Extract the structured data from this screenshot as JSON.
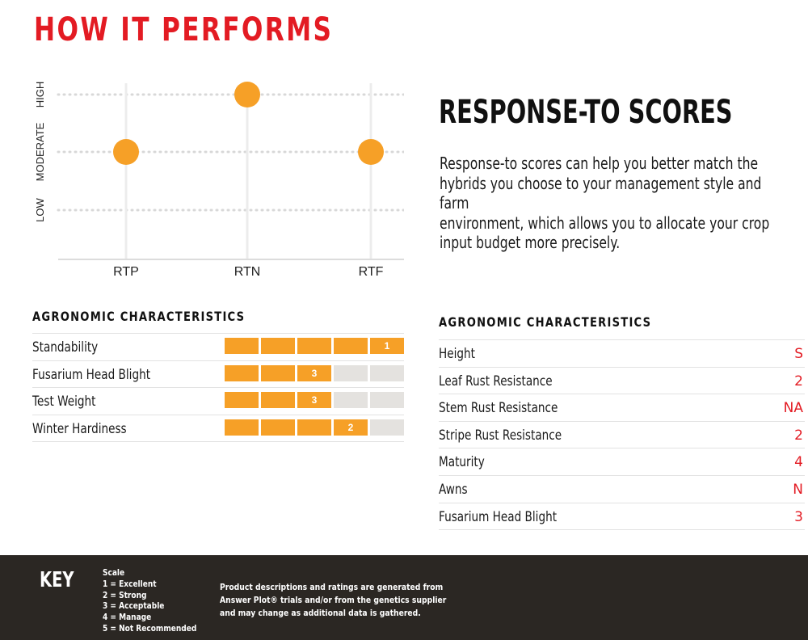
{
  "page": {
    "headline": "HOW IT PERFORMS",
    "accent_color": "#e31b23",
    "bar_color": "#f6a027"
  },
  "chart_data": {
    "type": "scatter",
    "categories": [
      "RTP",
      "RTN",
      "RTF"
    ],
    "y_levels": [
      "LOW",
      "MODERATE",
      "HIGH"
    ],
    "values": [
      "MODERATE",
      "HIGH",
      "MODERATE"
    ],
    "point_color": "#f6a027",
    "grid": true
  },
  "response_to": {
    "title": "RESPONSE-TO SCORES",
    "body_lines": [
      "Response-to scores can help you better match the",
      "hybrids you choose to your management style and farm",
      "environment, which allows you to allocate your crop",
      "input budget more precisely."
    ]
  },
  "agronomic_left": {
    "title": "AGRONOMIC CHARACTERISTICS",
    "rows": [
      {
        "label": "Standability",
        "score": 1,
        "filled": 5
      },
      {
        "label": "Fusarium Head Blight",
        "score": 3,
        "filled": 3
      },
      {
        "label": "Test Weight",
        "score": 3,
        "filled": 3
      },
      {
        "label": "Winter Hardiness",
        "score": 2,
        "filled": 4
      }
    ]
  },
  "agronomic_right": {
    "title": "AGRONOMIC CHARACTERISTICS",
    "rows": [
      {
        "label": "Height",
        "value": "S"
      },
      {
        "label": "Leaf Rust Resistance",
        "value": "2"
      },
      {
        "label": "Stem Rust Resistance",
        "value": "NA"
      },
      {
        "label": "Stripe Rust Resistance",
        "value": "2"
      },
      {
        "label": "Maturity",
        "value": "4"
      },
      {
        "label": "Awns",
        "value": "N"
      },
      {
        "label": "Fusarium Head Blight",
        "value": "3"
      }
    ]
  },
  "key": {
    "title": "KEY",
    "scale_lines": [
      "Scale",
      "1 = Excellent",
      "2 = Strong",
      "3 = Acceptable",
      "4 = Manage",
      "5 = Not Recommended"
    ],
    "disclaimer_lines": [
      "Product descriptions and ratings are generated from",
      "Answer Plot® trials and/or from the genetics supplier",
      "and may change as additional data is gathered."
    ]
  }
}
